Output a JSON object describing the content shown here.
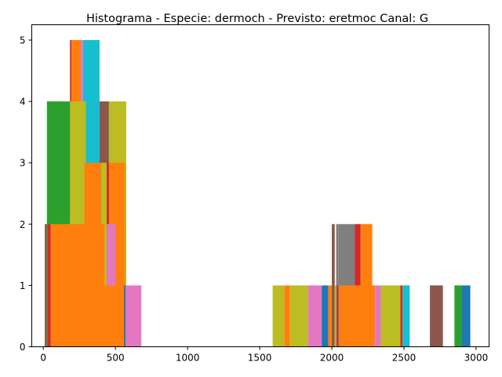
{
  "chart_data": {
    "type": "bar",
    "title": "Histograma - Especie: dermoch - Previsto: eretmoc Canal: G",
    "xlabel": "",
    "ylabel": "",
    "xlim": [
      -80,
      3090
    ],
    "ylim": [
      0,
      5.25
    ],
    "xticks": [
      0,
      500,
      1000,
      1500,
      2000,
      2500,
      3000
    ],
    "yticks": [
      0,
      1,
      2,
      3,
      4,
      5
    ],
    "grid": false,
    "legend": "none",
    "bars": [
      {
        "x0": 10,
        "x1": 25,
        "value": 2,
        "color": "#8c564b"
      },
      {
        "x0": 25,
        "x1": 185,
        "value": 4,
        "color": "#2ca02c"
      },
      {
        "x0": 185,
        "x1": 195,
        "value": 5,
        "color": "#d62728"
      },
      {
        "x0": 195,
        "x1": 260,
        "value": 5,
        "color": "#ff7f0e"
      },
      {
        "x0": 260,
        "x1": 275,
        "value": 5,
        "color": "#e377c2"
      },
      {
        "x0": 275,
        "x1": 390,
        "value": 5,
        "color": "#17becf"
      },
      {
        "x0": 185,
        "x1": 295,
        "value": 4,
        "color": "#bcbd22"
      },
      {
        "x0": 390,
        "x1": 455,
        "value": 4,
        "color": "#8c564b"
      },
      {
        "x0": 455,
        "x1": 575,
        "value": 4,
        "color": "#bcbd22"
      },
      {
        "x0": 285,
        "x1": 400,
        "value": 3,
        "color": "#ff7f0e"
      },
      {
        "x0": 400,
        "x1": 440,
        "value": 3,
        "color": "#bcbd22"
      },
      {
        "x0": 440,
        "x1": 455,
        "value": 3,
        "color": "#d62728"
      },
      {
        "x0": 455,
        "x1": 565,
        "value": 3,
        "color": "#ff7f0e"
      },
      {
        "x0": 30,
        "x1": 50,
        "value": 2,
        "color": "#d62728"
      },
      {
        "x0": 50,
        "x1": 425,
        "value": 2,
        "color": "#ff7f0e"
      },
      {
        "x0": 425,
        "x1": 440,
        "value": 2,
        "color": "#bcbd22"
      },
      {
        "x0": 440,
        "x1": 500,
        "value": 2,
        "color": "#e377c2"
      },
      {
        "x0": 425,
        "x1": 570,
        "value": 1,
        "color": "#ff7f0e"
      },
      {
        "x0": 560,
        "x1": 580,
        "value": 1,
        "color": "#1f77b4"
      },
      {
        "x0": 570,
        "x1": 680,
        "value": 1,
        "color": "#e377c2"
      },
      {
        "x0": 1590,
        "x1": 1670,
        "value": 1,
        "color": "#bcbd22"
      },
      {
        "x0": 1670,
        "x1": 1710,
        "value": 1,
        "color": "#ff7f0e"
      },
      {
        "x0": 1710,
        "x1": 1835,
        "value": 1,
        "color": "#bcbd22"
      },
      {
        "x0": 1835,
        "x1": 1930,
        "value": 1,
        "color": "#e377c2"
      },
      {
        "x0": 1930,
        "x1": 1975,
        "value": 1,
        "color": "#1f77b4"
      },
      {
        "x0": 1975,
        "x1": 2000,
        "value": 1,
        "color": "#ff7f0e"
      },
      {
        "x0": 2000,
        "x1": 2020,
        "value": 2,
        "color": "#8c564b"
      },
      {
        "x0": 2020,
        "x1": 2035,
        "value": 1,
        "color": "#bcbd22"
      },
      {
        "x0": 2030,
        "x1": 2045,
        "value": 2,
        "color": "#7f7f7f"
      },
      {
        "x0": 2035,
        "x1": 2050,
        "value": 1,
        "color": "#d62728"
      },
      {
        "x0": 2045,
        "x1": 2160,
        "value": 2,
        "color": "#7f7f7f"
      },
      {
        "x0": 2160,
        "x1": 2200,
        "value": 2,
        "color": "#d62728"
      },
      {
        "x0": 2200,
        "x1": 2280,
        "value": 2,
        "color": "#ff7f0e"
      },
      {
        "x0": 2050,
        "x1": 2300,
        "value": 1,
        "color": "#ff7f0e"
      },
      {
        "x0": 2300,
        "x1": 2340,
        "value": 1,
        "color": "#e377c2"
      },
      {
        "x0": 2340,
        "x1": 2475,
        "value": 1,
        "color": "#bcbd22"
      },
      {
        "x0": 2475,
        "x1": 2490,
        "value": 1,
        "color": "#d62728"
      },
      {
        "x0": 2490,
        "x1": 2540,
        "value": 1,
        "color": "#17becf"
      },
      {
        "x0": 2680,
        "x1": 2770,
        "value": 1,
        "color": "#8c564b"
      },
      {
        "x0": 2850,
        "x1": 2900,
        "value": 1,
        "color": "#2ca02c"
      },
      {
        "x0": 2900,
        "x1": 2960,
        "value": 1,
        "color": "#1f77b4"
      }
    ]
  }
}
